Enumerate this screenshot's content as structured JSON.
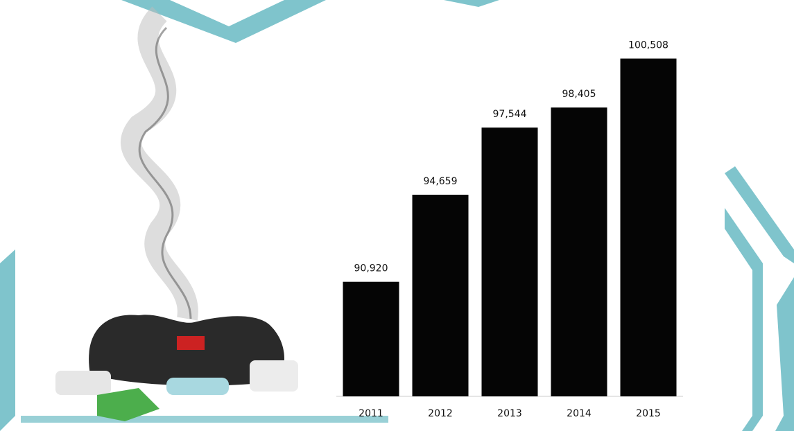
{
  "chart_data": {
    "type": "bar",
    "categories": [
      "2011",
      "2012",
      "2013",
      "2014",
      "2015"
    ],
    "values": [
      90920,
      94659,
      97544,
      98405,
      100508
    ],
    "value_labels": [
      "90,920",
      "94,659",
      "97,544",
      "98,405",
      "100,508"
    ],
    "color": "#050505",
    "ylim": [
      86000,
      101000
    ]
  }
}
